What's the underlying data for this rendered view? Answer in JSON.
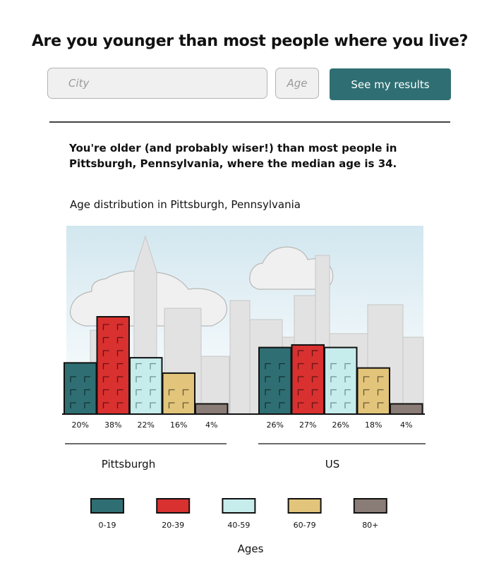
{
  "header": {
    "title": "Are you younger than most people where you live?"
  },
  "form": {
    "city_placeholder": "City",
    "age_placeholder": "Age",
    "submit_label": "See my results"
  },
  "result": {
    "text": "You're older (and probably wiser!) than most people in Pittsburgh, Pennsylvania, where the median age is 34."
  },
  "chart_data": {
    "type": "bar",
    "title": "Age distribution in Pittsburgh, Pennsylvania",
    "xlabel": "Ages",
    "ylabel": "",
    "categories": [
      "0-19",
      "20-39",
      "40-59",
      "60-79",
      "80+"
    ],
    "series": [
      {
        "name": "Pittsburgh",
        "values": [
          20,
          38,
          22,
          16,
          4
        ],
        "value_labels": [
          "20%",
          "38%",
          "22%",
          "16%",
          "4%"
        ]
      },
      {
        "name": "US",
        "values": [
          26,
          27,
          26,
          18,
          4
        ],
        "value_labels": [
          "26%",
          "27%",
          "26%",
          "18%",
          "4%"
        ]
      }
    ],
    "colors": [
      "#2f6f73",
      "#d93030",
      "#c6ecec",
      "#e2c57a",
      "#8a7c76"
    ],
    "ylim": [
      0,
      40
    ],
    "legend": "bottom"
  }
}
